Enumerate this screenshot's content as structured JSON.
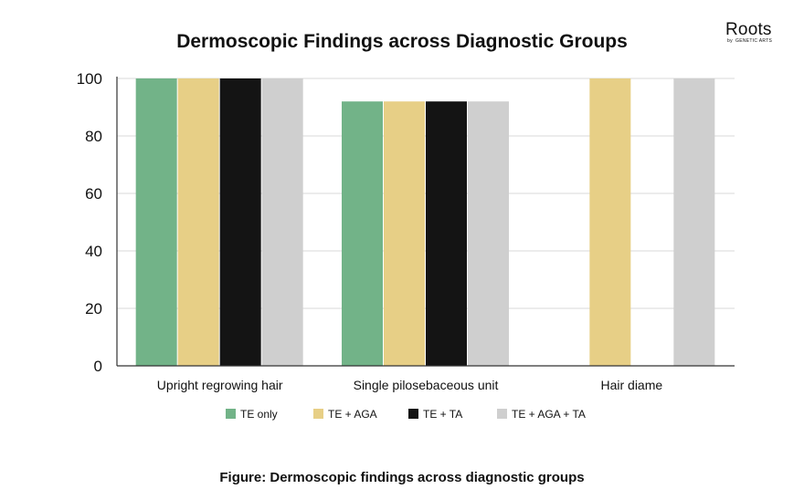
{
  "logo": {
    "name": "Roots",
    "by": "by",
    "sub": "GENETIC ARTS"
  },
  "caption": "Figure: Dermoscopic findings across diagnostic groups",
  "colors": {
    "te_only": "#72b388",
    "te_aga": "#e7cf86",
    "te_ta": "#141414",
    "te_aga_ta": "#cfcfcf",
    "grid": "#d9d9d9",
    "axis": "#333333"
  },
  "chart_data": {
    "type": "bar",
    "title": "Dermoscopic Findings across Diagnostic Groups",
    "xlabel": "",
    "ylabel": "",
    "ylim": [
      0,
      100
    ],
    "yticks": [
      0,
      20,
      40,
      60,
      80,
      100
    ],
    "grid": true,
    "legend_position": "bottom",
    "categories": [
      "Upright regrowing hair",
      "Single pilosebaceous unit",
      "Hair diame"
    ],
    "series": [
      {
        "name": "TE only",
        "color": "#72b388",
        "values": [
          100,
          92,
          0
        ]
      },
      {
        "name": "TE + AGA",
        "color": "#e7cf86",
        "values": [
          100,
          92,
          100
        ]
      },
      {
        "name": "TE + TA",
        "color": "#141414",
        "values": [
          100,
          92,
          0
        ]
      },
      {
        "name": "TE + AGA + TA",
        "color": "#cfcfcf",
        "values": [
          100,
          92,
          100
        ]
      }
    ]
  }
}
